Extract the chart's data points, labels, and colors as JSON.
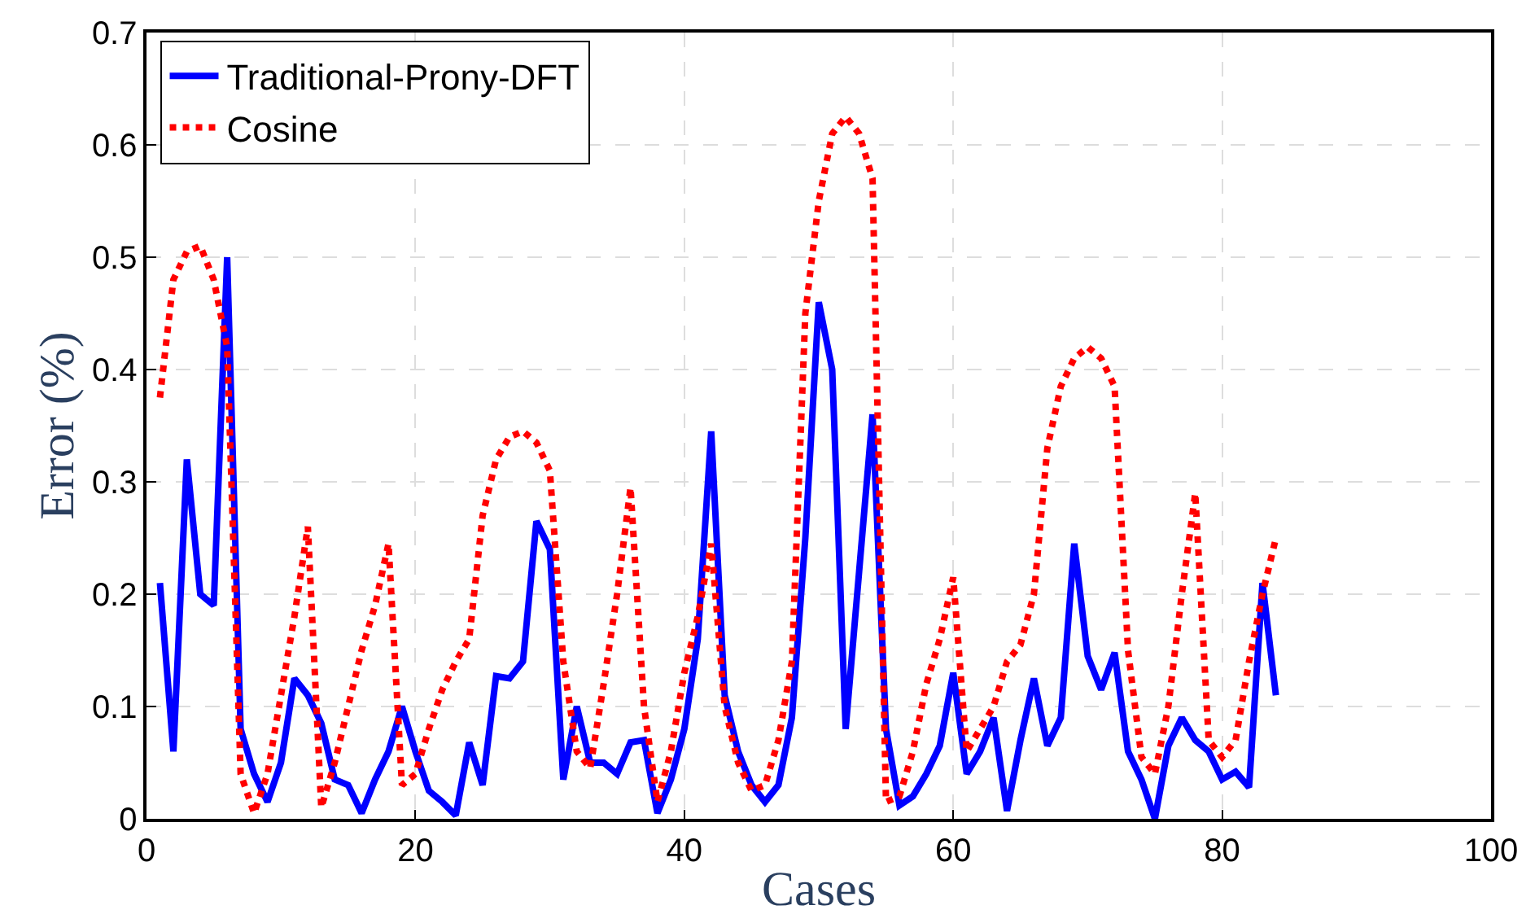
{
  "chart_data": {
    "type": "line",
    "xlabel": "Cases",
    "ylabel": "Error (%)",
    "x": [
      1,
      2,
      3,
      4,
      5,
      6,
      7,
      8,
      9,
      10,
      11,
      12,
      13,
      14,
      15,
      16,
      17,
      18,
      19,
      20,
      21,
      22,
      23,
      24,
      25,
      26,
      27,
      28,
      29,
      30,
      31,
      32,
      33,
      34,
      35,
      36,
      37,
      38,
      39,
      40,
      41,
      42,
      43,
      44,
      45,
      46,
      47,
      48,
      49,
      50,
      51,
      52,
      53,
      54,
      55,
      56,
      57,
      58,
      59,
      60,
      61,
      62,
      63,
      64,
      65,
      66,
      67,
      68,
      69,
      70,
      71,
      72,
      73,
      74,
      75,
      76,
      77,
      78,
      79,
      80,
      81,
      82,
      83,
      84
    ],
    "series": [
      {
        "name": "Traditional-Prony-DFT",
        "color": "#0000ff",
        "line_style": "solid",
        "values": [
          0.21,
          0.06,
          0.32,
          0.2,
          0.19,
          0.5,
          0.08,
          0.04,
          0.015,
          0.05,
          0.125,
          0.11,
          0.085,
          0.035,
          0.03,
          0.005,
          0.035,
          0.06,
          0.1,
          0.06,
          0.025,
          0.015,
          0.003,
          0.068,
          0.03,
          0.127,
          0.125,
          0.14,
          0.265,
          0.24,
          0.035,
          0.1,
          0.05,
          0.05,
          0.04,
          0.068,
          0.07,
          0.005,
          0.035,
          0.08,
          0.16,
          0.345,
          0.11,
          0.06,
          0.03,
          0.015,
          0.03,
          0.09,
          0.25,
          0.46,
          0.4,
          0.08,
          0.22,
          0.36,
          0.08,
          0.012,
          0.02,
          0.04,
          0.065,
          0.13,
          0.04,
          0.06,
          0.09,
          0.007,
          0.07,
          0.125,
          0.065,
          0.09,
          0.245,
          0.145,
          0.115,
          0.148,
          0.06,
          0.035,
          0.0,
          0.065,
          0.09,
          0.07,
          0.06,
          0.035,
          0.042,
          0.028,
          0.21,
          0.11
        ]
      },
      {
        "name": "Cosine",
        "color": "#ff0000",
        "line_style": "dotted",
        "values": [
          0.375,
          0.48,
          0.505,
          0.51,
          0.48,
          0.42,
          0.04,
          0.005,
          0.04,
          0.11,
          0.18,
          0.26,
          0.01,
          0.05,
          0.1,
          0.15,
          0.19,
          0.245,
          0.03,
          0.04,
          0.08,
          0.115,
          0.14,
          0.16,
          0.27,
          0.32,
          0.34,
          0.345,
          0.335,
          0.31,
          0.14,
          0.06,
          0.045,
          0.12,
          0.2,
          0.295,
          0.1,
          0.015,
          0.06,
          0.13,
          0.18,
          0.245,
          0.1,
          0.05,
          0.025,
          0.03,
          0.07,
          0.14,
          0.45,
          0.55,
          0.61,
          0.625,
          0.61,
          0.57,
          0.015,
          0.02,
          0.06,
          0.12,
          0.16,
          0.215,
          0.06,
          0.08,
          0.1,
          0.14,
          0.155,
          0.2,
          0.33,
          0.385,
          0.41,
          0.42,
          0.41,
          0.385,
          0.15,
          0.055,
          0.04,
          0.1,
          0.2,
          0.29,
          0.07,
          0.055,
          0.07,
          0.14,
          0.2,
          0.25
        ]
      }
    ],
    "xlim": [
      0,
      100
    ],
    "xticks": [
      0,
      20,
      40,
      60,
      80,
      100
    ],
    "ylim": [
      0,
      0.7
    ],
    "yticks": [
      0,
      0.1,
      0.2,
      0.3,
      0.4,
      0.5,
      0.6,
      0.7
    ],
    "grid": true,
    "legend": "top left",
    "marker": "none"
  }
}
